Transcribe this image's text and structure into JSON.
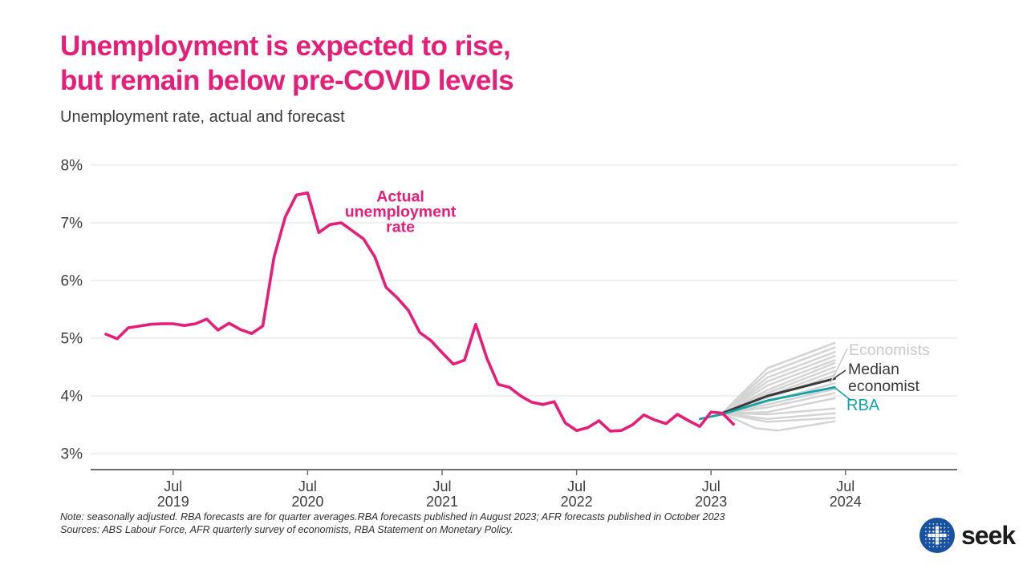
{
  "header": {
    "title_line1": "Unemployment is expected to rise,",
    "title_line2": "but remain below pre-COVID levels",
    "subtitle": "Unemployment rate, actual and forecast"
  },
  "footer": {
    "note_line1": "Note: seasonally adjusted. RBA forecasts are for quarter averages.RBA forecasts published in August 2023; AFR forecasts published in October 2023",
    "note_line2": "Sources: ABS Labour Force, AFR quarterly survey of economists, RBA Statement on Monetary Policy.",
    "logo_wordmark": "seek"
  },
  "colors": {
    "pink": "#e61e78",
    "teal": "#14a3a9",
    "dark": "#3a3a3a",
    "gray_line": "#d4d4d4",
    "label_gray": "#c9caca",
    "axis": "#6e6e6e",
    "grid": "#ebebeb",
    "tick_text": "#3d3d3d",
    "logo_blue": "#17519f"
  },
  "chart_data": {
    "type": "line",
    "title": "Unemployment rate, actual and forecast",
    "y_axis": {
      "ticks": [
        8,
        7,
        6,
        5,
        4,
        3
      ],
      "suffix": "%",
      "range": [
        3,
        8
      ],
      "grid": true
    },
    "x_axis": {
      "tick_label_top": "Jul",
      "tick_years": [
        "2019",
        "2020",
        "2021",
        "2022",
        "2023",
        "2024"
      ],
      "tick_t": [
        2019.5,
        2020.5,
        2021.5,
        2022.5,
        2023.5,
        2024.5
      ]
    },
    "annotation": {
      "lines": [
        "Actual",
        "unemployment",
        "rate"
      ],
      "t": 2021.19,
      "v": 7.37
    },
    "legend": [
      {
        "label": "Economists",
        "color_key": "label_gray"
      },
      {
        "label": "Median economist",
        "color_key": "dark"
      },
      {
        "label": "RBA",
        "color_key": "teal"
      }
    ],
    "series": {
      "actual": {
        "name": "Actual unemployment rate",
        "start_t": 2019.0,
        "step_months": 1,
        "values": [
          5.07,
          4.99,
          5.18,
          5.21,
          5.24,
          5.25,
          5.25,
          5.22,
          5.25,
          5.33,
          5.14,
          5.26,
          5.15,
          5.08,
          5.21,
          6.4,
          7.1,
          7.48,
          7.52,
          6.83,
          6.97,
          7.0,
          6.86,
          6.72,
          6.41,
          5.88,
          5.7,
          5.48,
          5.1,
          4.96,
          4.75,
          4.55,
          4.62,
          5.24,
          4.65,
          4.2,
          4.15,
          4.0,
          3.89,
          3.85,
          3.9,
          3.53,
          3.4,
          3.45,
          3.57,
          3.39,
          3.4,
          3.5,
          3.67,
          3.58,
          3.52,
          3.68,
          3.57,
          3.47,
          3.72,
          3.7,
          3.51
        ]
      },
      "rba": {
        "name": "RBA",
        "points": [
          [
            2023.417,
            3.6
          ],
          [
            2023.583,
            3.68
          ],
          [
            2023.92,
            3.92
          ],
          [
            2024.42,
            4.15
          ]
        ]
      },
      "median_economist": {
        "name": "Median economist",
        "points": [
          [
            2023.583,
            3.7
          ],
          [
            2023.92,
            4.0
          ],
          [
            2024.42,
            4.3
          ]
        ]
      },
      "economists": {
        "name": "Economists",
        "lines": [
          [
            [
              2023.583,
              3.7
            ],
            [
              2023.92,
              4.48
            ],
            [
              2024.42,
              4.92
            ]
          ],
          [
            [
              2023.583,
              3.7
            ],
            [
              2023.92,
              4.4
            ],
            [
              2024.42,
              4.84
            ]
          ],
          [
            [
              2023.583,
              3.7
            ],
            [
              2023.92,
              4.32
            ],
            [
              2024.42,
              4.76
            ]
          ],
          [
            [
              2023.583,
              3.7
            ],
            [
              2023.92,
              4.25
            ],
            [
              2024.42,
              4.69
            ]
          ],
          [
            [
              2023.583,
              3.7
            ],
            [
              2023.92,
              4.18
            ],
            [
              2024.42,
              4.62
            ]
          ],
          [
            [
              2023.583,
              3.7
            ],
            [
              2023.92,
              4.1
            ],
            [
              2024.42,
              4.57
            ]
          ],
          [
            [
              2023.583,
              3.7
            ],
            [
              2023.92,
              4.05
            ],
            [
              2024.42,
              4.5
            ]
          ],
          [
            [
              2023.583,
              3.7
            ],
            [
              2023.92,
              4.0
            ],
            [
              2024.42,
              4.43
            ]
          ],
          [
            [
              2023.583,
              3.7
            ],
            [
              2023.92,
              3.97
            ],
            [
              2024.42,
              4.36
            ]
          ],
          [
            [
              2023.583,
              3.7
            ],
            [
              2023.92,
              3.9
            ],
            [
              2024.42,
              4.22
            ]
          ],
          [
            [
              2023.583,
              3.7
            ],
            [
              2023.92,
              3.85
            ],
            [
              2024.42,
              4.12
            ]
          ],
          [
            [
              2023.583,
              3.7
            ],
            [
              2023.92,
              3.8
            ],
            [
              2024.42,
              4.05
            ]
          ],
          [
            [
              2023.583,
              3.7
            ],
            [
              2023.92,
              3.72
            ],
            [
              2024.42,
              3.96
            ]
          ],
          [
            [
              2023.583,
              3.7
            ],
            [
              2023.92,
              3.68
            ],
            [
              2024.42,
              3.78
            ]
          ],
          [
            [
              2023.583,
              3.7
            ],
            [
              2023.92,
              3.6
            ],
            [
              2024.42,
              3.7
            ]
          ],
          [
            [
              2023.583,
              3.7
            ],
            [
              2023.83,
              3.44
            ],
            [
              2024.0,
              3.4
            ],
            [
              2024.42,
              3.56
            ]
          ],
          [
            [
              2023.583,
              3.7
            ],
            [
              2023.92,
              3.55
            ],
            [
              2024.42,
              3.62
            ]
          ]
        ]
      }
    }
  }
}
